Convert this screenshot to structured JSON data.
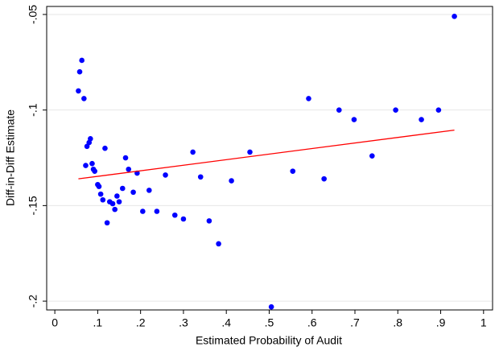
{
  "chart_data": {
    "type": "scatter",
    "x_label": "Estimated Probability of Audit",
    "y_label": "Diff-in-Diff Estimate",
    "xlim": [
      -0.019,
      1.021
    ],
    "ylim": [
      -0.2046,
      -0.0458
    ],
    "xticks": [
      0,
      {
        "value": 0.1,
        "label": ".1"
      },
      {
        "value": 0.2,
        "label": ".2"
      },
      {
        "value": 0.3,
        "label": ".3"
      },
      {
        "value": 0.4,
        "label": ".4"
      },
      {
        "value": 0.5,
        "label": ".5"
      },
      {
        "value": 0.6,
        "label": ".6"
      },
      {
        "value": 0.7,
        "label": ".7"
      },
      {
        "value": 0.8,
        "label": ".8"
      },
      {
        "value": 0.9,
        "label": ".9"
      },
      1
    ],
    "yticks": [
      {
        "value": -0.2,
        "label": "-.2"
      },
      {
        "value": -0.15,
        "label": "-.15"
      },
      {
        "value": -0.1,
        "label": "-.1"
      },
      {
        "value": -0.05,
        "label": "-.05"
      }
    ],
    "grid": true,
    "series": [
      {
        "type": "scatter",
        "color": "#0000ff",
        "x": [
          0.055,
          0.058,
          0.063,
          0.068,
          0.072,
          0.075,
          0.08,
          0.083,
          0.087,
          0.09,
          0.093,
          0.1,
          0.103,
          0.107,
          0.112,
          0.117,
          0.122,
          0.128,
          0.135,
          0.14,
          0.145,
          0.15,
          0.158,
          0.165,
          0.172,
          0.183,
          0.192,
          0.205,
          0.22,
          0.238,
          0.258,
          0.28,
          0.3,
          0.322,
          0.34,
          0.36,
          0.382,
          0.412,
          0.455,
          0.505,
          0.555,
          0.592,
          0.628,
          0.663,
          0.698,
          0.74,
          0.795,
          0.855,
          0.895,
          0.932
        ],
        "values": [
          -0.09,
          -0.08,
          -0.074,
          -0.094,
          -0.129,
          -0.119,
          -0.117,
          -0.115,
          -0.128,
          -0.131,
          -0.132,
          -0.139,
          -0.14,
          -0.144,
          -0.147,
          -0.12,
          -0.159,
          -0.148,
          -0.149,
          -0.152,
          -0.145,
          -0.148,
          -0.141,
          -0.125,
          -0.131,
          -0.143,
          -0.133,
          -0.153,
          -0.142,
          -0.153,
          -0.134,
          -0.155,
          -0.157,
          -0.122,
          -0.135,
          -0.158,
          -0.17,
          -0.137,
          -0.122,
          -0.203,
          -0.132,
          -0.094,
          -0.136,
          -0.1,
          -0.105,
          -0.124,
          -0.1,
          -0.105,
          -0.1,
          -0.051
        ]
      },
      {
        "type": "line",
        "color": "#ff0000",
        "x": [
          0.055,
          0.932
        ],
        "values": [
          -0.136,
          -0.1105
        ]
      }
    ]
  }
}
